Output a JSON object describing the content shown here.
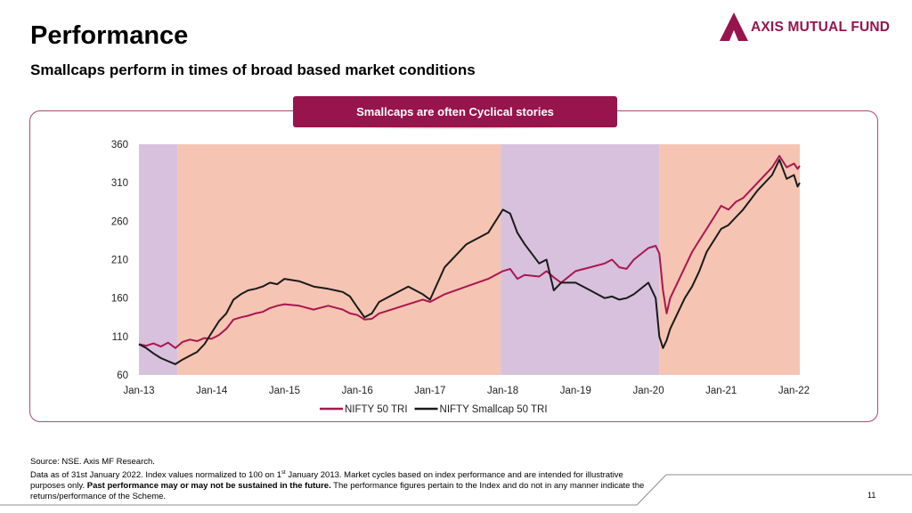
{
  "header": {
    "title": "Performance",
    "subtitle": "Smallcaps perform in times of broad based market conditions"
  },
  "logo": {
    "text": "AXIS MUTUAL FUND",
    "color": "#97144d"
  },
  "callout": {
    "text": "Smallcaps are often Cyclical stories",
    "color": "#97144d"
  },
  "chart_data": {
    "type": "line",
    "x_ticks": [
      "Jan-13",
      "Jan-14",
      "Jan-15",
      "Jan-16",
      "Jan-17",
      "Jan-18",
      "Jan-19",
      "Jan-20",
      "Jan-21",
      "Jan-22"
    ],
    "y_ticks": [
      "60",
      "110",
      "160",
      "210",
      "260",
      "310",
      "360"
    ],
    "ylim": [
      60,
      360
    ],
    "xlim": [
      2013.0,
      2022.08
    ],
    "grid": false,
    "legend": "bottom",
    "bands": [
      {
        "from": 2013.0,
        "to": 2013.53,
        "color": "#d7c1dd"
      },
      {
        "from": 2013.53,
        "to": 2017.97,
        "color": "#f5c4b2"
      },
      {
        "from": 2017.97,
        "to": 2020.15,
        "color": "#d7c1dd"
      },
      {
        "from": 2020.15,
        "to": 2022.08,
        "color": "#f5c4b2"
      }
    ],
    "series": [
      {
        "name": "NIFTY 50 TRI",
        "color": "#a8174f",
        "x": [
          2013.0,
          2013.1,
          2013.2,
          2013.3,
          2013.4,
          2013.5,
          2013.6,
          2013.7,
          2013.8,
          2013.9,
          2014.0,
          2014.1,
          2014.2,
          2014.3,
          2014.4,
          2014.5,
          2014.6,
          2014.7,
          2014.8,
          2014.9,
          2015.0,
          2015.2,
          2015.4,
          2015.6,
          2015.8,
          2015.9,
          2016.0,
          2016.1,
          2016.2,
          2016.3,
          2016.5,
          2016.7,
          2016.9,
          2017.0,
          2017.2,
          2017.5,
          2017.8,
          2018.0,
          2018.1,
          2018.2,
          2018.3,
          2018.5,
          2018.6,
          2018.7,
          2018.8,
          2019.0,
          2019.2,
          2019.4,
          2019.5,
          2019.6,
          2019.7,
          2019.8,
          2020.0,
          2020.1,
          2020.15,
          2020.2,
          2020.25,
          2020.3,
          2020.4,
          2020.5,
          2020.6,
          2020.7,
          2020.8,
          2020.9,
          2021.0,
          2021.1,
          2021.2,
          2021.3,
          2021.5,
          2021.7,
          2021.8,
          2021.9,
          2022.0,
          2022.05,
          2022.08
        ],
        "y": [
          100,
          98,
          101,
          97,
          102,
          95,
          103,
          106,
          104,
          108,
          107,
          112,
          120,
          132,
          135,
          137,
          140,
          142,
          147,
          150,
          152,
          150,
          145,
          150,
          145,
          140,
          138,
          132,
          133,
          140,
          146,
          152,
          158,
          155,
          165,
          175,
          185,
          195,
          198,
          185,
          190,
          188,
          195,
          187,
          180,
          195,
          200,
          205,
          210,
          200,
          198,
          210,
          225,
          228,
          218,
          170,
          140,
          160,
          180,
          200,
          220,
          235,
          250,
          265,
          280,
          275,
          285,
          290,
          310,
          330,
          345,
          330,
          335,
          328,
          332
        ]
      },
      {
        "name": "NIFTY Smallcap 50 TRI",
        "color": "#1a1a1a",
        "x": [
          2013.0,
          2013.1,
          2013.2,
          2013.3,
          2013.4,
          2013.5,
          2013.6,
          2013.7,
          2013.8,
          2013.9,
          2014.0,
          2014.1,
          2014.2,
          2014.3,
          2014.4,
          2014.5,
          2014.6,
          2014.7,
          2014.8,
          2014.9,
          2015.0,
          2015.2,
          2015.4,
          2015.6,
          2015.8,
          2015.9,
          2016.0,
          2016.1,
          2016.2,
          2016.3,
          2016.5,
          2016.7,
          2016.9,
          2017.0,
          2017.2,
          2017.5,
          2017.8,
          2018.0,
          2018.1,
          2018.2,
          2018.3,
          2018.5,
          2018.6,
          2018.7,
          2018.8,
          2019.0,
          2019.2,
          2019.4,
          2019.5,
          2019.6,
          2019.7,
          2019.8,
          2020.0,
          2020.1,
          2020.15,
          2020.2,
          2020.25,
          2020.3,
          2020.4,
          2020.5,
          2020.6,
          2020.7,
          2020.8,
          2020.9,
          2021.0,
          2021.1,
          2021.2,
          2021.3,
          2021.5,
          2021.7,
          2021.8,
          2021.9,
          2022.0,
          2022.05,
          2022.08
        ],
        "y": [
          100,
          95,
          88,
          82,
          78,
          74,
          80,
          85,
          90,
          100,
          115,
          130,
          140,
          158,
          165,
          170,
          172,
          175,
          180,
          178,
          185,
          182,
          175,
          172,
          168,
          162,
          148,
          135,
          140,
          155,
          165,
          175,
          165,
          158,
          200,
          230,
          245,
          275,
          270,
          245,
          230,
          205,
          210,
          170,
          180,
          180,
          170,
          160,
          162,
          158,
          160,
          165,
          180,
          160,
          110,
          95,
          105,
          120,
          140,
          160,
          175,
          195,
          220,
          235,
          250,
          255,
          265,
          275,
          300,
          320,
          340,
          315,
          320,
          305,
          310
        ]
      }
    ]
  },
  "footer": {
    "source": "Source: NSE. Axis MF Research.",
    "note_a": "Data as of 31st January 2022. Index values normalized to 100 on 1",
    "note_sup": "st",
    "note_b": " January 2013. Market cycles based on index performance and are intended for illustrative purposes only. ",
    "note_bold": "Past performance may or may not be sustained in the future.",
    "note_c": " The performance figures pertain to the Index and do not in any manner indicate the returns/performance of the Scheme.",
    "page_number": "11"
  }
}
